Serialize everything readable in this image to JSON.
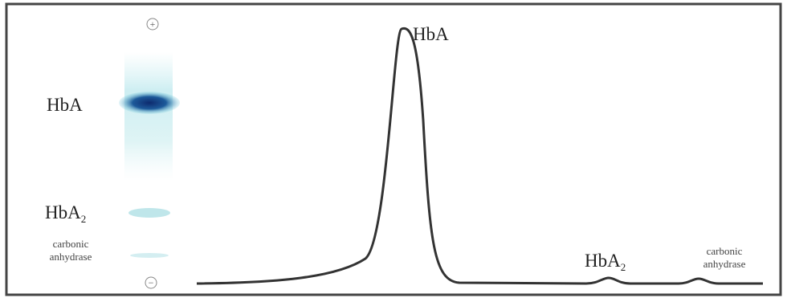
{
  "gel": {
    "anode": "+",
    "cathode": "−",
    "labels": [
      {
        "main": "HbA"
      },
      {
        "main": "HbA",
        "sub": "2"
      },
      {
        "lines": [
          "carbonic",
          "anhydrase"
        ]
      }
    ]
  },
  "trace": {
    "labels": [
      {
        "main": "HbA"
      },
      {
        "main": "HbA",
        "sub": "2"
      },
      {
        "lines": [
          "carbonic",
          "anhydrase"
        ]
      }
    ]
  }
}
